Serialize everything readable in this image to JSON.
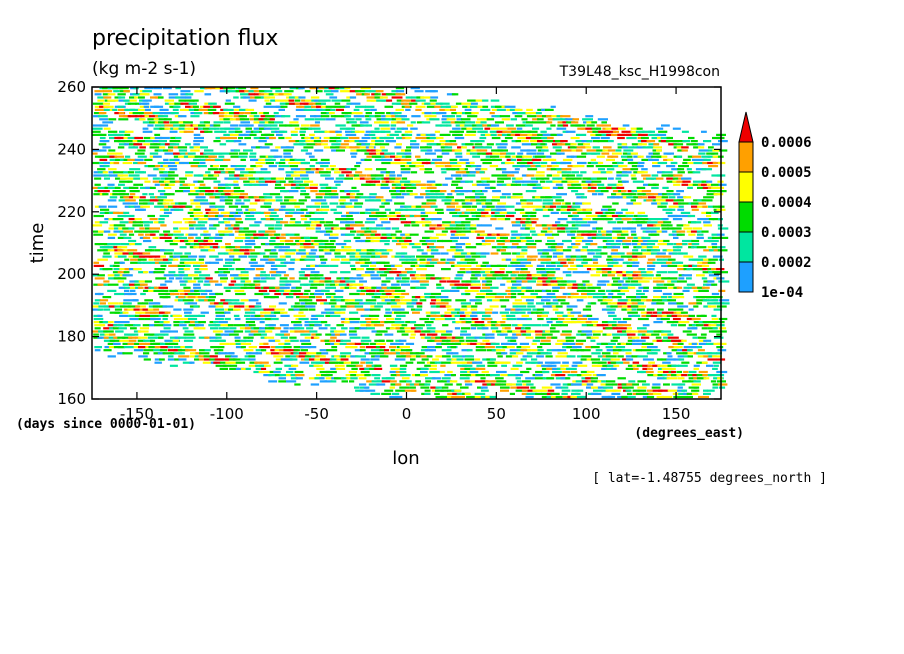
{
  "chart_data": {
    "type": "heatmap",
    "title": "precipitation flux",
    "units": "(kg m-2 s-1)",
    "subtitle": "T39L48_ksc_H1998con",
    "xlabel": "lon",
    "x_units": "(degrees_east)",
    "ylabel": "time",
    "y_units": "(days since 0000-01-01)",
    "annotation": "[ lat=-1.48755 degrees_north ]",
    "xlim": [
      -175,
      175
    ],
    "ylim": [
      160,
      260
    ],
    "x_ticks": [
      "-150",
      "-100",
      "-50",
      "0",
      "50",
      "100",
      "150"
    ],
    "x_tick_values": [
      -150,
      -100,
      -50,
      0,
      50,
      100,
      150
    ],
    "y_ticks": [
      "160",
      "180",
      "200",
      "220",
      "240",
      "260"
    ],
    "y_tick_values": [
      160,
      180,
      200,
      220,
      240,
      260
    ],
    "colorbar": {
      "levels": [
        "1e-04",
        "0.0002",
        "0.0003",
        "0.0004",
        "0.0005",
        "0.0006"
      ],
      "colors": [
        "#1ea0ff",
        "#00e6a0",
        "#00dc00",
        "#ffff00",
        "#ffa000",
        "#ee0000"
      ],
      "extend": "max"
    },
    "grid": false,
    "legend_placement": "right"
  }
}
